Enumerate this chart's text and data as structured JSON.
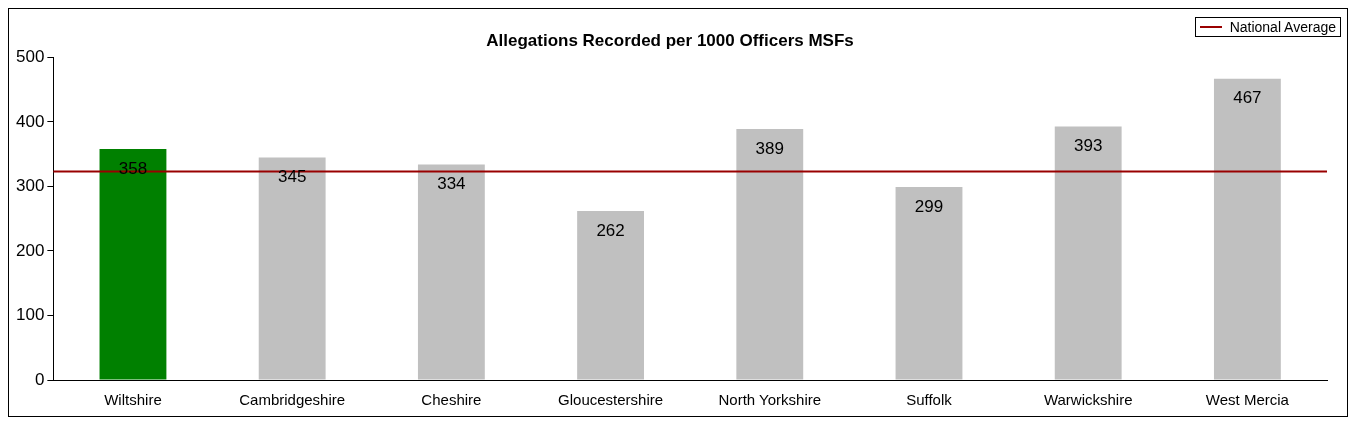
{
  "chart_data": {
    "type": "bar",
    "title": "Allegations Recorded per 1000 Officers MSFs",
    "categories": [
      "Wiltshire",
      "Cambridgeshire",
      "Cheshire",
      "Gloucestershire",
      "North Yorkshire",
      "Suffolk",
      "Warwickshire",
      "West Mercia"
    ],
    "values": [
      358,
      345,
      334,
      262,
      389,
      299,
      393,
      467
    ],
    "colors": [
      "#008000",
      "#c0c0c0",
      "#c0c0c0",
      "#c0c0c0",
      "#c0c0c0",
      "#c0c0c0",
      "#c0c0c0",
      "#c0c0c0"
    ],
    "ylim": [
      0,
      500
    ],
    "yticks": [
      0,
      100,
      200,
      300,
      400,
      500
    ],
    "ref_lines": [
      {
        "axis": "y",
        "value": 323,
        "label": "National Average",
        "color": "#990000"
      }
    ],
    "data_labels": true,
    "legend": "top right",
    "grid": false
  }
}
